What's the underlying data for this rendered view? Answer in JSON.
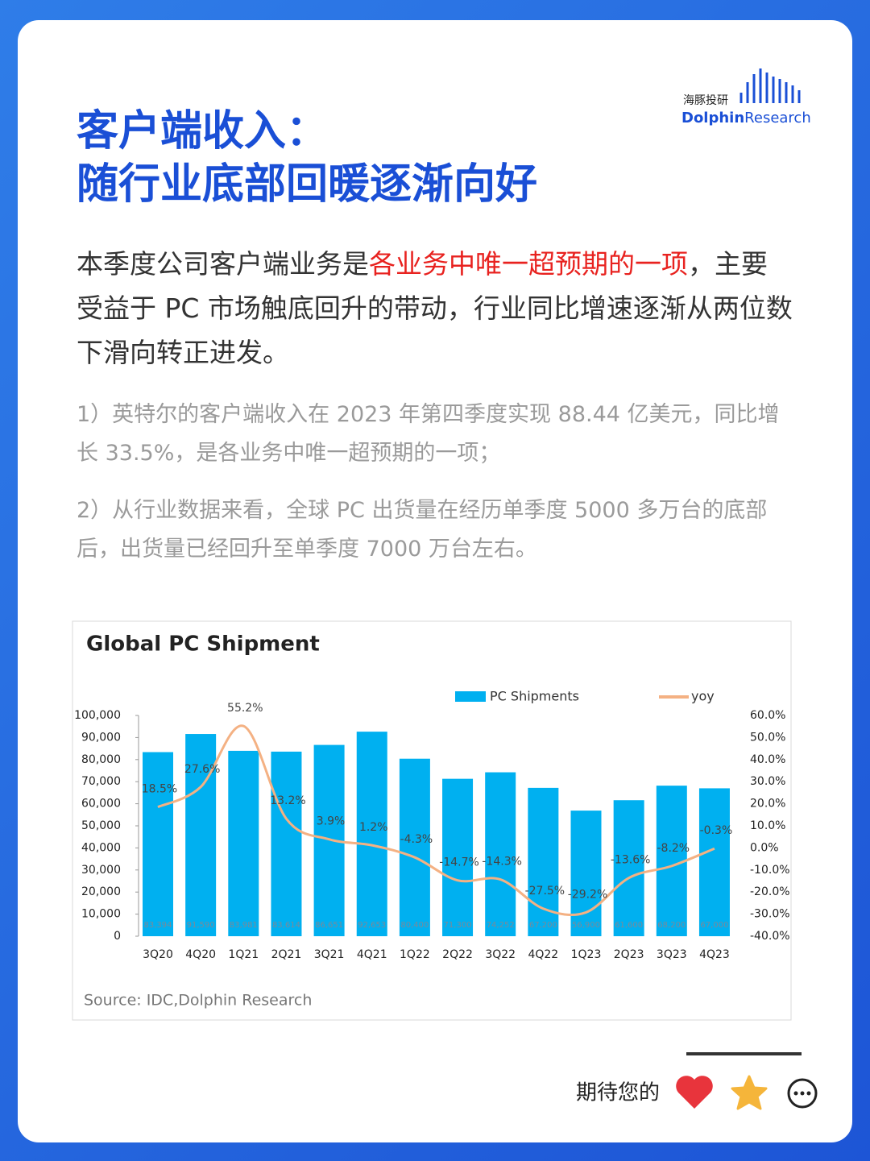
{
  "header": {
    "title_lines": [
      "客户端收入：",
      "随行业底部回暖逐渐向好"
    ],
    "logo_cn": "海豚投研",
    "logo_en_1": "Dolphin",
    "logo_en_2": "Research"
  },
  "intro": {
    "before": "本季度公司客户端业务是",
    "highlight": "各业务中唯一超预期的一项",
    "after": "，主要受益于 PC 市场触底回升的带动，行业同比增速逐渐从两位数下滑向转正进发。"
  },
  "points": [
    "1）英特尔的客户端收入在 2023 年第四季度实现 88.44 亿美元，同比增长 33.5%，是各业务中唯一超预期的一项；",
    "2）从行业数据来看，全球 PC 出货量在经历单季度 5000 多万台的底部后，出货量已经回升至单季度 7000 万台左右。"
  ],
  "chart_data": {
    "type": "bar-line",
    "title": "Global PC Shipment",
    "source": "Source: IDC,Dolphin Research",
    "categories": [
      "3Q20",
      "4Q20",
      "1Q21",
      "2Q21",
      "3Q21",
      "4Q21",
      "1Q22",
      "2Q22",
      "3Q22",
      "4Q22",
      "1Q23",
      "2Q23",
      "3Q23",
      "4Q23"
    ],
    "series": [
      {
        "name": "PC Shipments",
        "color": "#00b0f0",
        "values": [
          83394,
          91590,
          83981,
          83614,
          86651,
          92653,
          80400,
          71300,
          74252,
          67200,
          56900,
          61600,
          68200,
          67000
        ],
        "value_labels": [
          "83,394",
          "91,590",
          "83,981",
          "83,614",
          "86,651",
          "92,653",
          "80,400",
          "71,300",
          "74,252",
          "67,200",
          "56,900",
          "61,600",
          "68,200",
          "67,000"
        ]
      },
      {
        "name": "yoy",
        "color": "#f4b183",
        "axis": "y2",
        "values": [
          18.5,
          27.6,
          55.2,
          13.2,
          3.9,
          1.2,
          -4.3,
          -14.7,
          -14.3,
          -27.5,
          -29.2,
          -13.6,
          -8.2,
          -0.3
        ],
        "value_labels": [
          "18.5%",
          "27.6%",
          "55.2%",
          "13.2%",
          "3.9%",
          "1.2%",
          "-4.3%",
          "-14.7%",
          "-14.3%",
          "-27.5%",
          "-29.2%",
          "-13.6%",
          "-8.2%",
          "-0.3%"
        ]
      }
    ],
    "ylim": [
      0,
      100000
    ],
    "yticks": [
      0,
      {
        "value": 10000,
        "label": "10,000"
      },
      {
        "value": 20000,
        "label": "20,000"
      },
      {
        "value": 30000,
        "label": "30,000"
      },
      {
        "value": 40000,
        "label": "40,000"
      },
      {
        "value": 50000,
        "label": "50,000"
      },
      {
        "value": 60000,
        "label": "60,000"
      },
      {
        "value": 70000,
        "label": "70,000"
      },
      {
        "value": 80000,
        "label": "80,000"
      },
      {
        "value": 90000,
        "label": "90,000"
      },
      {
        "value": 100000,
        "label": "100,000"
      }
    ],
    "y2lim": [
      -40,
      60
    ],
    "y2ticks": [
      {
        "value": -40,
        "label": "-40.0%"
      },
      {
        "value": -30,
        "label": "-30.0%"
      },
      {
        "value": -20,
        "label": "-20.0%"
      },
      {
        "value": -10,
        "label": "-10.0%"
      },
      {
        "value": 0,
        "label": "0.0%"
      },
      {
        "value": 10,
        "label": "10.0%"
      },
      {
        "value": 20,
        "label": "20.0%"
      },
      {
        "value": 30,
        "label": "30.0%"
      },
      {
        "value": 40,
        "label": "40.0%"
      },
      {
        "value": 50,
        "label": "50.0%"
      },
      {
        "value": 60,
        "label": "60.0%"
      }
    ]
  },
  "footer": {
    "prompt": "期待您的"
  }
}
